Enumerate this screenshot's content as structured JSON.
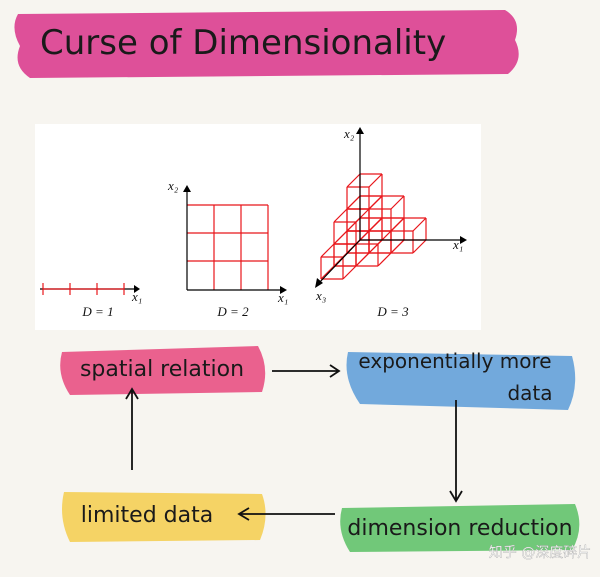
{
  "title": "Curse of Dimensionality",
  "figure": {
    "panels": [
      {
        "label": "D = 1",
        "axes": [
          "x₁"
        ]
      },
      {
        "label": "D = 2",
        "axes": [
          "x₁",
          "x₂"
        ]
      },
      {
        "label": "D = 3",
        "axes": [
          "x₁",
          "x₂",
          "x₃"
        ]
      }
    ]
  },
  "nodes": [
    {
      "lines": [
        "spatial relation"
      ]
    },
    {
      "lines": [
        "exponentially more",
        "data"
      ]
    },
    {
      "lines": [
        "dimension reduction"
      ]
    },
    {
      "lines": [
        "limited data"
      ]
    }
  ],
  "watermark": "知乎 @深度碎片"
}
